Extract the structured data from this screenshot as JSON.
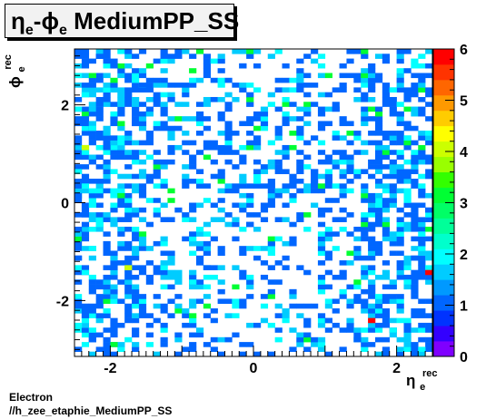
{
  "title": {
    "eta_symbol": "η",
    "eta_sub": "e",
    "dash": "-",
    "phi_symbol": "ϕ",
    "phi_sub": "e",
    "suffix": "MediumPP_SS"
  },
  "footer": {
    "line1": "Electron",
    "line2": "//h_zee_etaphie_MediumPP_SS"
  },
  "chart_data": {
    "type": "heatmap",
    "title": "ηe-ϕe MediumPP_SS",
    "xlabel": {
      "symbol": "η",
      "sup": "rec",
      "sub": "e"
    },
    "ylabel": {
      "symbol": "ϕ",
      "sup": "rec",
      "sub": "e"
    },
    "xlim": [
      -2.5,
      2.5
    ],
    "ylim": [
      -3.1416,
      3.1416
    ],
    "zlim": [
      0,
      6
    ],
    "nbins_x": 50,
    "nbins_y": 64,
    "x_ticks": [
      -2,
      0,
      2
    ],
    "y_ticks": [
      -2,
      0,
      2
    ],
    "z_ticks": [
      0,
      1,
      2,
      3,
      4,
      5,
      6
    ],
    "grid": false,
    "colorbar": "right",
    "palette": [
      "#7f00ff",
      "#3300ff",
      "#0033ff",
      "#0066ff",
      "#0099ff",
      "#00ccff",
      "#00ffff",
      "#00ffcc",
      "#00ff99",
      "#00ff66",
      "#00ff33",
      "#33ff00",
      "#99ff00",
      "#ccff00",
      "#ffff00",
      "#ffcc00",
      "#ff9900",
      "#ff6600",
      "#ff3300",
      "#ff0000"
    ],
    "density_hint": "sparse cells of content 1-6; most cells 1, denser near |eta|>1.5",
    "bins": [
      [
        -2.45,
        -2.95,
        1
      ],
      [
        -2.35,
        -2.85,
        2
      ],
      [
        -2.25,
        -2.75,
        1
      ],
      [
        -2.45,
        -2.55,
        2
      ],
      [
        -2.35,
        -2.35,
        1
      ],
      [
        -2.15,
        -2.15,
        1
      ],
      [
        -2.45,
        -1.95,
        2
      ],
      [
        -2.25,
        -1.65,
        1
      ],
      [
        -2.35,
        -1.45,
        2
      ],
      [
        -2.05,
        -1.35,
        1
      ],
      [
        -2.45,
        -1.15,
        1
      ],
      [
        -2.25,
        -0.95,
        2
      ],
      [
        -2.35,
        -0.75,
        1
      ],
      [
        -2.45,
        -0.55,
        1
      ],
      [
        -2.15,
        -0.45,
        2
      ],
      [
        -2.35,
        -0.25,
        1
      ],
      [
        -2.25,
        -0.05,
        2
      ],
      [
        -2.45,
        0.15,
        1
      ],
      [
        -2.35,
        0.35,
        2
      ],
      [
        -2.15,
        0.45,
        1
      ],
      [
        -2.45,
        0.65,
        2
      ],
      [
        -2.25,
        0.85,
        1
      ],
      [
        -2.35,
        1.05,
        2
      ],
      [
        -2.05,
        1.15,
        1
      ],
      [
        -2.45,
        1.35,
        1
      ],
      [
        -2.25,
        1.55,
        2
      ],
      [
        -2.35,
        1.75,
        1
      ],
      [
        -2.45,
        1.95,
        2
      ],
      [
        -2.15,
        2.05,
        1
      ],
      [
        -2.35,
        2.25,
        2
      ],
      [
        -2.25,
        2.45,
        1
      ],
      [
        -2.45,
        2.65,
        2
      ],
      [
        -2.35,
        2.85,
        1
      ],
      [
        -2.15,
        2.95,
        1
      ],
      [
        -2.45,
        3.05,
        1
      ],
      [
        -1.75,
        -1.35,
        4
      ],
      [
        -1.85,
        0.15,
        3
      ],
      [
        -2.35,
        1.15,
        4
      ],
      [
        -1.95,
        -2.85,
        3
      ],
      [
        -2.25,
        2.65,
        3
      ],
      [
        -1.45,
        -2.55,
        1
      ],
      [
        -1.25,
        -2.25,
        1
      ],
      [
        -1.05,
        -1.95,
        1
      ],
      [
        -0.85,
        -1.65,
        2
      ],
      [
        -0.65,
        -1.35,
        1
      ],
      [
        -0.45,
        -1.05,
        1
      ],
      [
        -0.25,
        -0.75,
        1
      ],
      [
        -0.05,
        -0.45,
        1
      ],
      [
        0.15,
        -0.15,
        1
      ],
      [
        0.35,
        0.15,
        1
      ],
      [
        0.55,
        0.45,
        1
      ],
      [
        0.75,
        0.75,
        2
      ],
      [
        0.95,
        1.05,
        1
      ],
      [
        1.15,
        1.35,
        1
      ],
      [
        1.35,
        1.65,
        1
      ],
      [
        -1.55,
        2.45,
        1
      ],
      [
        -1.15,
        2.15,
        1
      ],
      [
        -0.75,
        1.85,
        1
      ],
      [
        -0.35,
        1.55,
        1
      ],
      [
        0.05,
        1.25,
        1
      ],
      [
        0.45,
        0.95,
        1
      ],
      [
        0.85,
        0.65,
        1
      ],
      [
        1.25,
        0.35,
        1
      ],
      [
        1.65,
        0.05,
        1
      ],
      [
        -1.35,
        0.55,
        1
      ],
      [
        -0.95,
        -0.25,
        1
      ],
      [
        -0.55,
        0.85,
        1
      ],
      [
        0.25,
        -1.85,
        1
      ],
      [
        0.65,
        -2.15,
        1
      ],
      [
        1.05,
        -2.45,
        1
      ],
      [
        1.45,
        -2.75,
        1
      ],
      [
        -0.15,
        2.75,
        1
      ],
      [
        0.35,
        2.55,
        1
      ],
      [
        0.75,
        2.25,
        1
      ],
      [
        1.15,
        1.95,
        1
      ],
      [
        1.85,
        2.85,
        1
      ],
      [
        1.95,
        2.35,
        2
      ],
      [
        2.05,
        1.85,
        1
      ],
      [
        2.15,
        1.35,
        2
      ],
      [
        2.25,
        0.85,
        1
      ],
      [
        2.35,
        0.35,
        2
      ],
      [
        2.45,
        -0.15,
        1
      ],
      [
        2.35,
        -0.65,
        2
      ],
      [
        2.25,
        -1.15,
        1
      ],
      [
        2.15,
        -1.65,
        2
      ],
      [
        2.05,
        -2.15,
        1
      ],
      [
        1.95,
        -2.65,
        2
      ],
      [
        2.45,
        -1.45,
        6
      ],
      [
        1.65,
        -2.45,
        6
      ],
      [
        2.35,
        -2.95,
        2
      ],
      [
        1.85,
        0.55,
        1
      ],
      [
        2.45,
        2.05,
        1
      ],
      [
        1.75,
        -1.05,
        1
      ],
      [
        2.05,
        2.55,
        1
      ],
      [
        2.45,
        0.95,
        1
      ],
      [
        -1.65,
        1.65,
        1
      ],
      [
        -1.85,
        -0.65,
        1
      ],
      [
        -1.95,
        2.75,
        1
      ],
      [
        -0.05,
        2.25,
        1
      ],
      [
        0.55,
        -0.85,
        1
      ]
    ]
  }
}
